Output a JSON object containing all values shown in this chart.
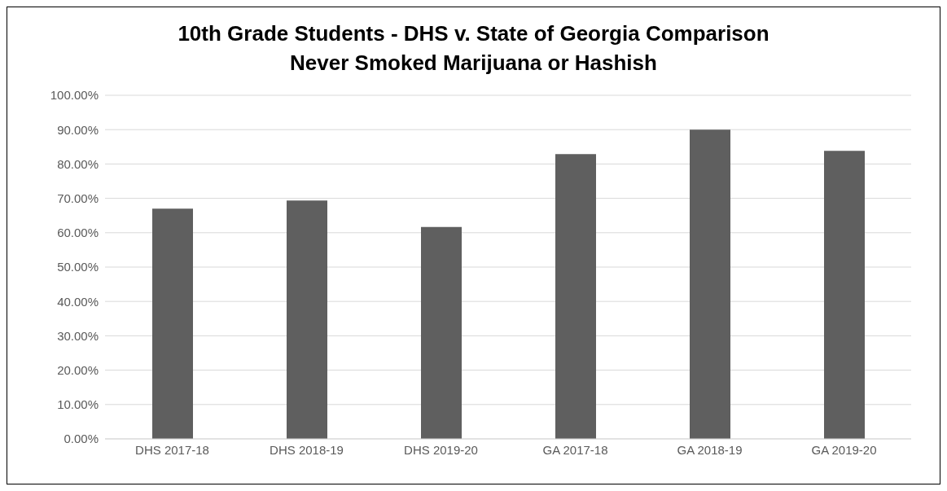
{
  "chart_data": {
    "type": "bar",
    "title": "10th Grade Students - DHS v. State of Georgia Comparison\nNever Smoked Marijuana or Hashish",
    "categories": [
      "DHS 2017-18",
      "DHS 2018-19",
      "DHS 2019-20",
      "GA 2017-18",
      "GA 2018-19",
      "GA 2019-20"
    ],
    "values": [
      67.0,
      69.4,
      61.7,
      82.9,
      90.0,
      83.8
    ],
    "color": "#5f5f5f",
    "ylim": [
      0,
      100
    ],
    "yticks": [
      {
        "value": 0,
        "label": "0.00%"
      },
      {
        "value": 10,
        "label": "10.00%"
      },
      {
        "value": 20,
        "label": "20.00%"
      },
      {
        "value": 30,
        "label": "30.00%"
      },
      {
        "value": 40,
        "label": "40.00%"
      },
      {
        "value": 50,
        "label": "50.00%"
      },
      {
        "value": 60,
        "label": "60.00%"
      },
      {
        "value": 70,
        "label": "70.00%"
      },
      {
        "value": 80,
        "label": "80.00%"
      },
      {
        "value": 90,
        "label": "90.00%"
      },
      {
        "value": 100,
        "label": "100.00%"
      }
    ],
    "grid": "y"
  }
}
